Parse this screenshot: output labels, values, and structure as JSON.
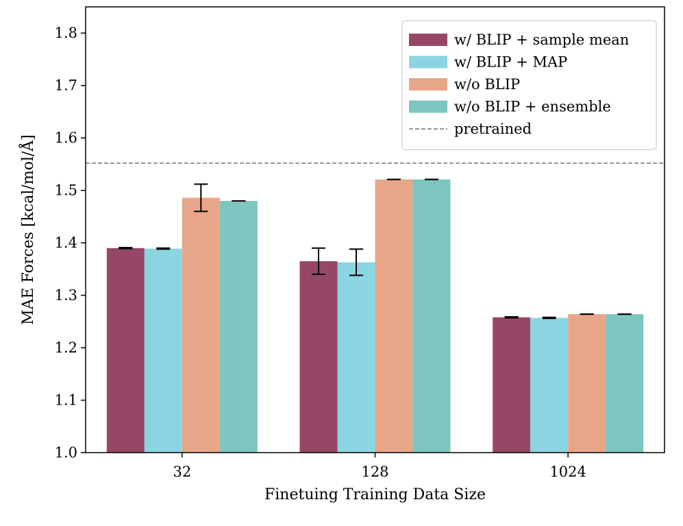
{
  "chart_data": {
    "type": "bar",
    "xlabel": "Finetuing Training Data Size",
    "ylabel": "MAE Forces [kcal/mol/Å]",
    "categories": [
      "32",
      "128",
      "1024"
    ],
    "ylim": [
      1.0,
      1.85
    ],
    "yticks": [
      1.0,
      1.1,
      1.2,
      1.3,
      1.4,
      1.5,
      1.6,
      1.7,
      1.8
    ],
    "grid": false,
    "legend_position": "top-right",
    "series": [
      {
        "name": "w/ BLIP + sample mean",
        "color": "#974766",
        "values": [
          1.39,
          1.365,
          1.258
        ],
        "errors": [
          0.001,
          0.025,
          0.001
        ]
      },
      {
        "name": "w/ BLIP + MAP",
        "color": "#8bd5e2",
        "values": [
          1.389,
          1.363,
          1.257
        ],
        "errors": [
          0.001,
          0.025,
          0.001
        ]
      },
      {
        "name": "w/o BLIP",
        "color": "#e8a688",
        "values": [
          1.486,
          1.521,
          1.264
        ],
        "errors": [
          0.026,
          0.0,
          0.0
        ]
      },
      {
        "name": "w/o BLIP + ensemble",
        "color": "#7cc6bf",
        "values": [
          1.48,
          1.521,
          1.264
        ],
        "errors": [
          0.0,
          0.0,
          0.0
        ]
      }
    ],
    "reference_line": {
      "name": "pretrained",
      "value": 1.552,
      "color": "#888888",
      "style": "dashed"
    }
  }
}
